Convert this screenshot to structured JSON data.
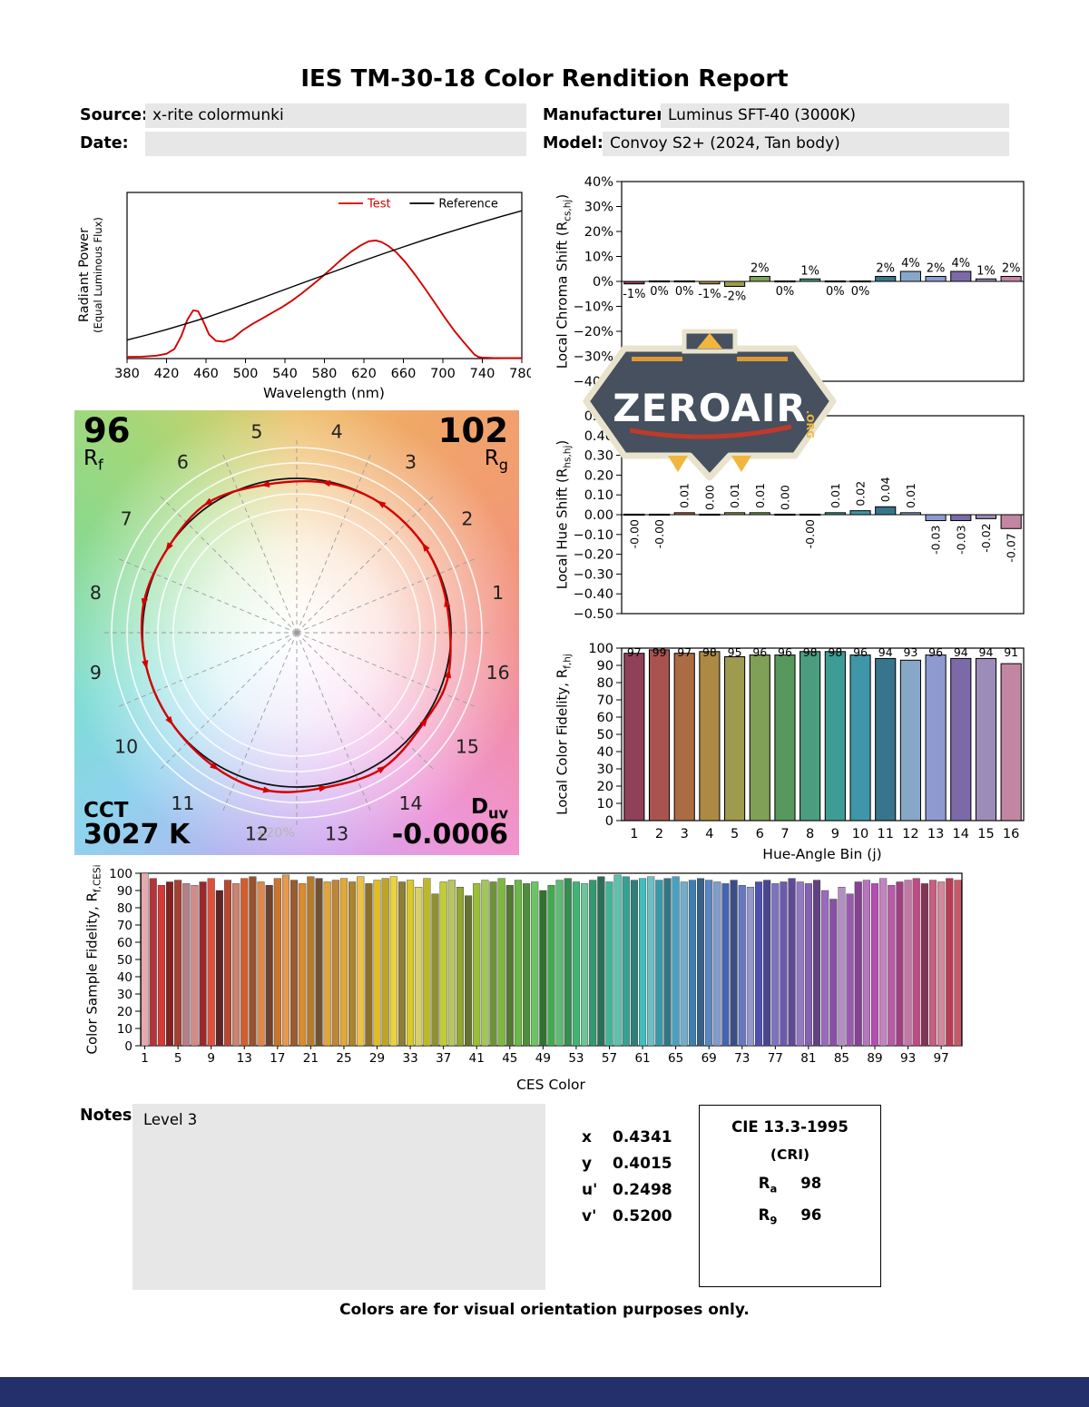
{
  "page": {
    "title": "IES TM-30-18 Color Rendition Report",
    "footer_note": "Colors are for visual orientation purposes only.",
    "bottom_bar_color": "#24306b"
  },
  "header": {
    "source_label": "Source:",
    "source_value": "x-rite colormunki",
    "date_label": "Date:",
    "date_value": "",
    "manufacturer_label": "Manufacturer:",
    "manufacturer_value": "Luminus SFT-40 (3000K)",
    "model_label": "Model:",
    "model_value": "Convoy S2+ (2024, Tan body)"
  },
  "watermark": {
    "brand": "ZEROAIR",
    "suffix": ".ORG"
  },
  "cvg": {
    "rf_value": "96",
    "rf_prefix": "R",
    "rf_sub": "f",
    "rg_value": "102",
    "rg_prefix": "R",
    "rg_sub": "g",
    "cct_label": "CCT",
    "cct_value": "3027 K",
    "duv_prefix": "D",
    "duv_sub": "uv",
    "duv_value": "-0.0006",
    "ring_label": "+20%",
    "bin_numbers": [
      1,
      2,
      3,
      4,
      5,
      6,
      7,
      8,
      9,
      10,
      11,
      12,
      13,
      14,
      15,
      16
    ]
  },
  "notes": {
    "label": "Notes:",
    "text": "Level 3"
  },
  "chromaticity": [
    {
      "label": "x",
      "value": "0.4341"
    },
    {
      "label": "y",
      "value": "0.4015"
    },
    {
      "label": "u'",
      "value": "0.2498"
    },
    {
      "label": "v'",
      "value": "0.5200"
    }
  ],
  "cri": {
    "title": "CIE 13.3-1995",
    "subtitle": "(CRI)",
    "rows": [
      {
        "prefix": "R",
        "sub": "a",
        "value": "98"
      },
      {
        "prefix": "R",
        "sub": "9",
        "value": "96"
      }
    ]
  },
  "hue_bin_colors": [
    "#8E4159",
    "#A8534D",
    "#AB6C43",
    "#AC8A44",
    "#9E9A4E",
    "#7FA055",
    "#57995C",
    "#4B9D7F",
    "#3D9C94",
    "#3F96A8",
    "#37758D",
    "#87A7C9",
    "#8F9BD0",
    "#7C6AA8",
    "#9C8CBA",
    "#C286A2"
  ],
  "chart_data": [
    {
      "id": "spectral",
      "type": "line",
      "xlabel": "Wavelength (nm)",
      "ylabel_line1": "Radiant Power",
      "ylabel_line2": "(Equal Luminous Flux)",
      "xlim": [
        380,
        780
      ],
      "x_ticks": [
        380,
        420,
        460,
        500,
        540,
        580,
        620,
        660,
        700,
        740,
        780
      ],
      "series": [
        {
          "name": "Test",
          "color": "#d40000",
          "x": [
            380,
            395,
            410,
            420,
            428,
            435,
            441,
            447,
            452,
            457,
            463,
            470,
            478,
            487,
            497,
            507,
            517,
            527,
            537,
            547,
            557,
            567,
            577,
            587,
            597,
            607,
            617,
            625,
            632,
            638,
            645,
            653,
            662,
            672,
            682,
            692,
            702,
            712,
            720,
            727,
            732,
            736,
            740,
            750,
            765,
            780
          ],
          "y": [
            0.01,
            0.012,
            0.018,
            0.03,
            0.06,
            0.14,
            0.24,
            0.3,
            0.295,
            0.235,
            0.15,
            0.11,
            0.105,
            0.125,
            0.175,
            0.215,
            0.25,
            0.285,
            0.32,
            0.36,
            0.405,
            0.455,
            0.505,
            0.56,
            0.615,
            0.665,
            0.705,
            0.73,
            0.735,
            0.725,
            0.7,
            0.66,
            0.6,
            0.52,
            0.435,
            0.345,
            0.255,
            0.17,
            0.11,
            0.06,
            0.025,
            0.01,
            0.006,
            0.004,
            0.003,
            0.003
          ]
        },
        {
          "name": "Reference",
          "color": "#000000",
          "x": [
            380,
            400,
            420,
            440,
            460,
            480,
            500,
            520,
            540,
            560,
            580,
            600,
            620,
            640,
            660,
            680,
            700,
            720,
            740,
            760,
            780
          ],
          "y": [
            0.115,
            0.147,
            0.18,
            0.217,
            0.255,
            0.297,
            0.34,
            0.385,
            0.43,
            0.475,
            0.52,
            0.565,
            0.61,
            0.653,
            0.695,
            0.736,
            0.775,
            0.813,
            0.85,
            0.886,
            0.92
          ]
        }
      ]
    },
    {
      "id": "chroma_shift",
      "type": "bar",
      "ylabel": {
        "prefix": "Local Chroma Shift (R",
        "sub": "cs,hj",
        "suffix": ")"
      },
      "categories": [
        1,
        2,
        3,
        4,
        5,
        6,
        7,
        8,
        9,
        10,
        11,
        12,
        13,
        14,
        15,
        16
      ],
      "values": [
        -1,
        0,
        0,
        -1,
        -2,
        2,
        0,
        1,
        0,
        0,
        2,
        4,
        2,
        4,
        1,
        2
      ],
      "bar_labels": [
        "-1%",
        "0%",
        "0%",
        "-1%",
        "-2%",
        "2%",
        "0%",
        "1%",
        "0%",
        "0%",
        "2%",
        "4%",
        "2%",
        "4%",
        "1%",
        "2%"
      ],
      "ylim": [
        -40,
        40
      ],
      "ytick_labels": [
        "40%",
        "30%",
        "20%",
        "10%",
        "0%",
        "−10%",
        "−20%",
        "−30%",
        "−40%"
      ]
    },
    {
      "id": "hue_shift",
      "type": "bar",
      "ylabel": {
        "prefix": "Local Hue Shift (R",
        "sub": "hs,hj",
        "suffix": ")"
      },
      "categories": [
        1,
        2,
        3,
        4,
        5,
        6,
        7,
        8,
        9,
        10,
        11,
        12,
        13,
        14,
        15,
        16
      ],
      "values": [
        0,
        0,
        0.01,
        0,
        0.01,
        0.01,
        0,
        0,
        0.01,
        0.02,
        0.04,
        0.01,
        -0.03,
        -0.03,
        -0.02,
        -0.07
      ],
      "bar_labels": [
        "-0.00",
        "-0.00",
        "0.01",
        "0.00",
        "0.01",
        "0.01",
        "0.00",
        "-0.00",
        "0.01",
        "0.02",
        "0.04",
        "0.01",
        "-0.03",
        "-0.03",
        "-0.02",
        "-0.07"
      ],
      "ylim": [
        -0.5,
        0.5
      ],
      "ytick_labels": [
        "0.50",
        "0.40",
        "0.30",
        "0.20",
        "0.10",
        "0.00",
        "−0.10",
        "−0.20",
        "−0.30",
        "−0.40",
        "−0.50"
      ]
    },
    {
      "id": "local_fidelity",
      "type": "bar",
      "xlabel": "Hue-Angle Bin (j)",
      "ylabel": {
        "prefix": "Local Color Fidelity, R",
        "sub": "f,hj",
        "suffix": ""
      },
      "categories": [
        1,
        2,
        3,
        4,
        5,
        6,
        7,
        8,
        9,
        10,
        11,
        12,
        13,
        14,
        15,
        16
      ],
      "values": [
        97,
        99,
        97,
        98,
        95,
        96,
        96,
        98,
        98,
        96,
        94,
        93,
        96,
        94,
        94,
        91
      ],
      "bar_labels": [
        "97",
        "99",
        "97",
        "98",
        "95",
        "96",
        "96",
        "98",
        "98",
        "96",
        "94",
        "93",
        "96",
        "94",
        "94",
        "91"
      ],
      "ylim": [
        0,
        100
      ],
      "ytick_labels": [
        "100",
        "90",
        "80",
        "70",
        "60",
        "50",
        "40",
        "30",
        "20",
        "10",
        "0"
      ]
    },
    {
      "id": "ces",
      "type": "bar",
      "xlabel": "CES Color",
      "ylabel": {
        "prefix": "Color Sample Fidelity, R",
        "sub": "f,CESi",
        "suffix": ""
      },
      "ylim": [
        0,
        100
      ],
      "ytick_labels": [
        "100",
        "90",
        "80",
        "70",
        "60",
        "50",
        "40",
        "30",
        "20",
        "10",
        "0"
      ],
      "xtick_values": [
        1,
        5,
        9,
        13,
        17,
        21,
        25,
        29,
        33,
        37,
        41,
        45,
        49,
        53,
        57,
        61,
        65,
        69,
        73,
        77,
        81,
        85,
        89,
        93,
        97
      ],
      "values": [
        100,
        97,
        93,
        95,
        96,
        94,
        93,
        95,
        97,
        90,
        96,
        94,
        97,
        98,
        95,
        93,
        97,
        99,
        96,
        94,
        98,
        97,
        95,
        96,
        97,
        95,
        98,
        94,
        96,
        97,
        98,
        95,
        96,
        92,
        97,
        88,
        95,
        96,
        92,
        87,
        94,
        96,
        95,
        97,
        93,
        96,
        94,
        95,
        90,
        93,
        96,
        97,
        95,
        94,
        96,
        98,
        95,
        99,
        98,
        96,
        97,
        98,
        96,
        97,
        98,
        95,
        96,
        97,
        96,
        95,
        94,
        96,
        93,
        92,
        95,
        96,
        94,
        95,
        97,
        95,
        94,
        96,
        90,
        85,
        92,
        88,
        95,
        96,
        94,
        97,
        93,
        95,
        96,
        97,
        94,
        96,
        95,
        97,
        96
      ],
      "colors": [
        "hsl(356,50%,78%)",
        "hsl(356,55%,45%)",
        "hsl(2,65%,52%)",
        "hsl(0,60%,32%)",
        "hsl(8,55%,42%)",
        "hsl(350,25%,60%)",
        "hsl(2,45%,68%)",
        "hsl(358,60%,38%)",
        "hsl(8,72%,55%)",
        "hsl(0,45%,26%)",
        "hsl(10,58%,46%)",
        "hsl(12,45%,62%)",
        "hsl(18,65%,50%)",
        "hsl(22,55%,38%)",
        "hsl(25,70%,58%)",
        "hsl(20,45%,30%)",
        "hsl(28,65%,48%)",
        "hsl(30,75%,60%)",
        "hsl(24,50%,40%)",
        "hsl(32,70%,52%)",
        "hsl(35,60%,44%)",
        "hsl(30,40%,32%)",
        "hsl(38,72%,56%)",
        "hsl(35,55%,48%)",
        "hsl(40,75%,55%)",
        "hsl(42,60%,42%)",
        "hsl(45,80%,60%)",
        "hsl(44,55%,35%)",
        "hsl(48,75%,52%)",
        "hsl(50,65%,45%)",
        "hsl(52,80%,58%)",
        "hsl(50,45%,38%)",
        "hsl(55,70%,50%)",
        "hsl(56,60%,62%)",
        "hsl(58,65%,45%)",
        "hsl(60,50%,38%)",
        "hsl(64,60%,50%)",
        "hsl(66,45%,58%)",
        "hsl(70,55%,42%)",
        "hsl(72,40%,32%)",
        "hsl(76,55%,48%)",
        "hsl(80,50%,56%)",
        "hsl(84,45%,40%)",
        "hsl(88,50%,48%)",
        "hsl(92,40%,34%)",
        "hsl(100,45%,50%)",
        "hsl(108,40%,40%)",
        "hsl(115,45%,58%)",
        "hsl(120,40%,32%)",
        "hsl(128,45%,46%)",
        "hsl(134,40%,55%)",
        "hsl(140,45%,38%)",
        "hsl(146,48%,48%)",
        "hsl(150,42%,60%)",
        "hsl(155,50%,40%)",
        "hsl(160,45%,30%)",
        "hsl(164,48%,48%)",
        "hsl(168,45%,56%)",
        "hsl(172,50%,42%)",
        "hsl(176,45%,34%)",
        "hsl(180,48%,50%)",
        "hsl(184,42%,60%)",
        "hsl(188,50%,44%)",
        "hsl(192,45%,36%)",
        "hsl(196,50%,52%)",
        "hsl(200,45%,62%)",
        "hsl(205,48%,46%)",
        "hsl(210,42%,38%)",
        "hsl(214,45%,55%)",
        "hsl(218,40%,65%)",
        "hsl(222,45%,48%)",
        "hsl(226,38%,38%)",
        "hsl(230,42%,58%)",
        "hsl(234,35%,68%)",
        "hsl(238,40%,50%)",
        "hsl(242,35%,42%)",
        "hsl(248,38%,60%)",
        "hsl(252,35%,52%)",
        "hsl(258,35%,44%)",
        "hsl(262,38%,62%)",
        "hsl(266,35%,54%)",
        "hsl(270,32%,38%)",
        "hsl(274,38%,58%)",
        "hsl(278,35%,48%)",
        "hsl(282,30%,66%)",
        "hsl(286,35%,52%)",
        "hsl(290,38%,42%)",
        "hsl(294,35%,60%)",
        "hsl(300,40%,50%)",
        "hsl(306,35%,64%)",
        "hsl(312,42%,54%)",
        "hsl(318,45%,44%)",
        "hsl(324,40%,62%)",
        "hsl(330,48%,52%)",
        "hsl(336,42%,36%)",
        "hsl(340,50%,58%)",
        "hsl(344,45%,68%)",
        "hsl(348,52%,48%)",
        "hsl(352,48%,56%)"
      ]
    }
  ]
}
